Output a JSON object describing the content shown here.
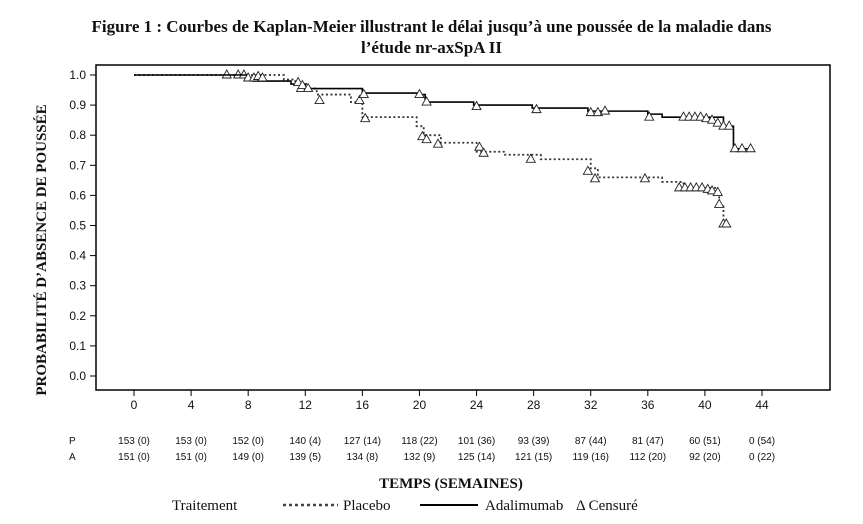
{
  "figure": {
    "title_line1": "Figure 1 : Courbes de Kaplan-Meier illustrant le délai jusqu’à une poussée de la maladie dans",
    "title_line2": "l’étude nr-axSpA II"
  },
  "chart_data": {
    "type": "line",
    "ylabel": "PROBABILITÉ D’ABSENCE DE POUSSÉE",
    "xlabel": "TEMPS (SEMAINES)",
    "xlim": [
      -2,
      46
    ],
    "ylim": [
      0,
      1.0
    ],
    "xticks": [
      0,
      4,
      8,
      12,
      16,
      20,
      24,
      28,
      32,
      36,
      40,
      44
    ],
    "xtick_labels": [
      "0",
      "4",
      "8",
      "12",
      "16",
      "20",
      "24",
      "28",
      "32",
      "36",
      "40",
      "44"
    ],
    "yticks": [
      0.0,
      0.1,
      0.2,
      0.3,
      0.4,
      0.5,
      0.6,
      0.7,
      0.8,
      0.9,
      1.0
    ],
    "ytick_labels": [
      "0.0",
      "0.1",
      "0.2",
      "0.3",
      "0.4",
      "0.5",
      "0.6",
      "0.7",
      "0.8",
      "0.9",
      "1.0"
    ],
    "series": [
      {
        "name": "Placebo",
        "style": "dotted",
        "steps": [
          [
            0,
            1.0
          ],
          [
            10.5,
            0.985
          ],
          [
            11.3,
            0.97
          ],
          [
            12.2,
            0.955
          ],
          [
            12.8,
            0.935
          ],
          [
            15.2,
            0.91
          ],
          [
            16.0,
            0.86
          ],
          [
            19.8,
            0.83
          ],
          [
            20.3,
            0.8
          ],
          [
            21.5,
            0.775
          ],
          [
            24.0,
            0.745
          ],
          [
            26.0,
            0.735
          ],
          [
            28.5,
            0.72
          ],
          [
            32.0,
            0.69
          ],
          [
            32.5,
            0.66
          ],
          [
            37.0,
            0.645
          ],
          [
            38.5,
            0.625
          ],
          [
            40.8,
            0.61
          ],
          [
            41.0,
            0.57
          ],
          [
            41.3,
            0.51
          ]
        ],
        "end_x": 41.6,
        "censored": [
          [
            6.5,
            1.0
          ],
          [
            7.3,
            1.0
          ],
          [
            7.7,
            1.0
          ],
          [
            11.7,
            0.955
          ],
          [
            13.0,
            0.915
          ],
          [
            15.8,
            0.915
          ],
          [
            16.2,
            0.855
          ],
          [
            20.2,
            0.795
          ],
          [
            20.5,
            0.785
          ],
          [
            21.3,
            0.77
          ],
          [
            24.2,
            0.76
          ],
          [
            24.5,
            0.74
          ],
          [
            27.8,
            0.72
          ],
          [
            31.8,
            0.68
          ],
          [
            32.3,
            0.655
          ],
          [
            35.8,
            0.655
          ],
          [
            38.2,
            0.625
          ],
          [
            38.6,
            0.625
          ],
          [
            39.0,
            0.625
          ],
          [
            39.4,
            0.625
          ],
          [
            39.8,
            0.625
          ],
          [
            40.2,
            0.62
          ],
          [
            40.5,
            0.615
          ],
          [
            40.9,
            0.61
          ],
          [
            41.0,
            0.57
          ],
          [
            41.3,
            0.505
          ],
          [
            41.5,
            0.505
          ]
        ]
      },
      {
        "name": "Adalimumab",
        "style": "solid",
        "steps": [
          [
            0,
            1.0
          ],
          [
            7.9,
            0.99
          ],
          [
            8.3,
            0.98
          ],
          [
            11.0,
            0.97
          ],
          [
            12.0,
            0.955
          ],
          [
            16.0,
            0.94
          ],
          [
            20.0,
            0.935
          ],
          [
            20.4,
            0.91
          ],
          [
            23.8,
            0.9
          ],
          [
            27.9,
            0.89
          ],
          [
            31.8,
            0.88
          ],
          [
            36.0,
            0.87
          ],
          [
            37.0,
            0.86
          ],
          [
            41.3,
            0.83
          ],
          [
            42.0,
            0.755
          ]
        ],
        "end_x": 43.0,
        "censored": [
          [
            8.0,
            0.99
          ],
          [
            8.4,
            0.99
          ],
          [
            8.7,
            0.995
          ],
          [
            9.0,
            0.99
          ],
          [
            11.5,
            0.975
          ],
          [
            11.8,
            0.965
          ],
          [
            12.2,
            0.955
          ],
          [
            16.1,
            0.935
          ],
          [
            20.0,
            0.935
          ],
          [
            20.5,
            0.91
          ],
          [
            24.0,
            0.895
          ],
          [
            28.2,
            0.885
          ],
          [
            32.0,
            0.875
          ],
          [
            32.5,
            0.875
          ],
          [
            33.0,
            0.88
          ],
          [
            36.1,
            0.86
          ],
          [
            38.5,
            0.86
          ],
          [
            38.9,
            0.86
          ],
          [
            39.3,
            0.86
          ],
          [
            39.7,
            0.86
          ],
          [
            40.1,
            0.855
          ],
          [
            40.5,
            0.85
          ],
          [
            40.9,
            0.84
          ],
          [
            41.3,
            0.83
          ],
          [
            41.7,
            0.83
          ],
          [
            42.1,
            0.755
          ],
          [
            42.6,
            0.755
          ],
          [
            43.2,
            0.755
          ]
        ]
      }
    ],
    "risk_table": {
      "rows": [
        {
          "label": "P",
          "values": [
            "153 (0)",
            "153 (0)",
            "152 (0)",
            "140 (4)",
            "127 (14)",
            "118 (22)",
            "101 (36)",
            "93 (39)",
            "87 (44)",
            "81 (47)",
            "60 (51)",
            "0 (54)"
          ]
        },
        {
          "label": "A",
          "values": [
            "151 (0)",
            "151 (0)",
            "149 (0)",
            "139 (5)",
            "134 (8)",
            "132 (9)",
            "125 (14)",
            "121 (15)",
            "119 (16)",
            "112 (20)",
            "92 (20)",
            "0 (22)"
          ]
        }
      ]
    },
    "legend": {
      "heading": "Traitement",
      "placebo_label": "Placebo",
      "adalimumab_label": "Adalimumab",
      "censor_label": "Δ Censuré"
    }
  }
}
